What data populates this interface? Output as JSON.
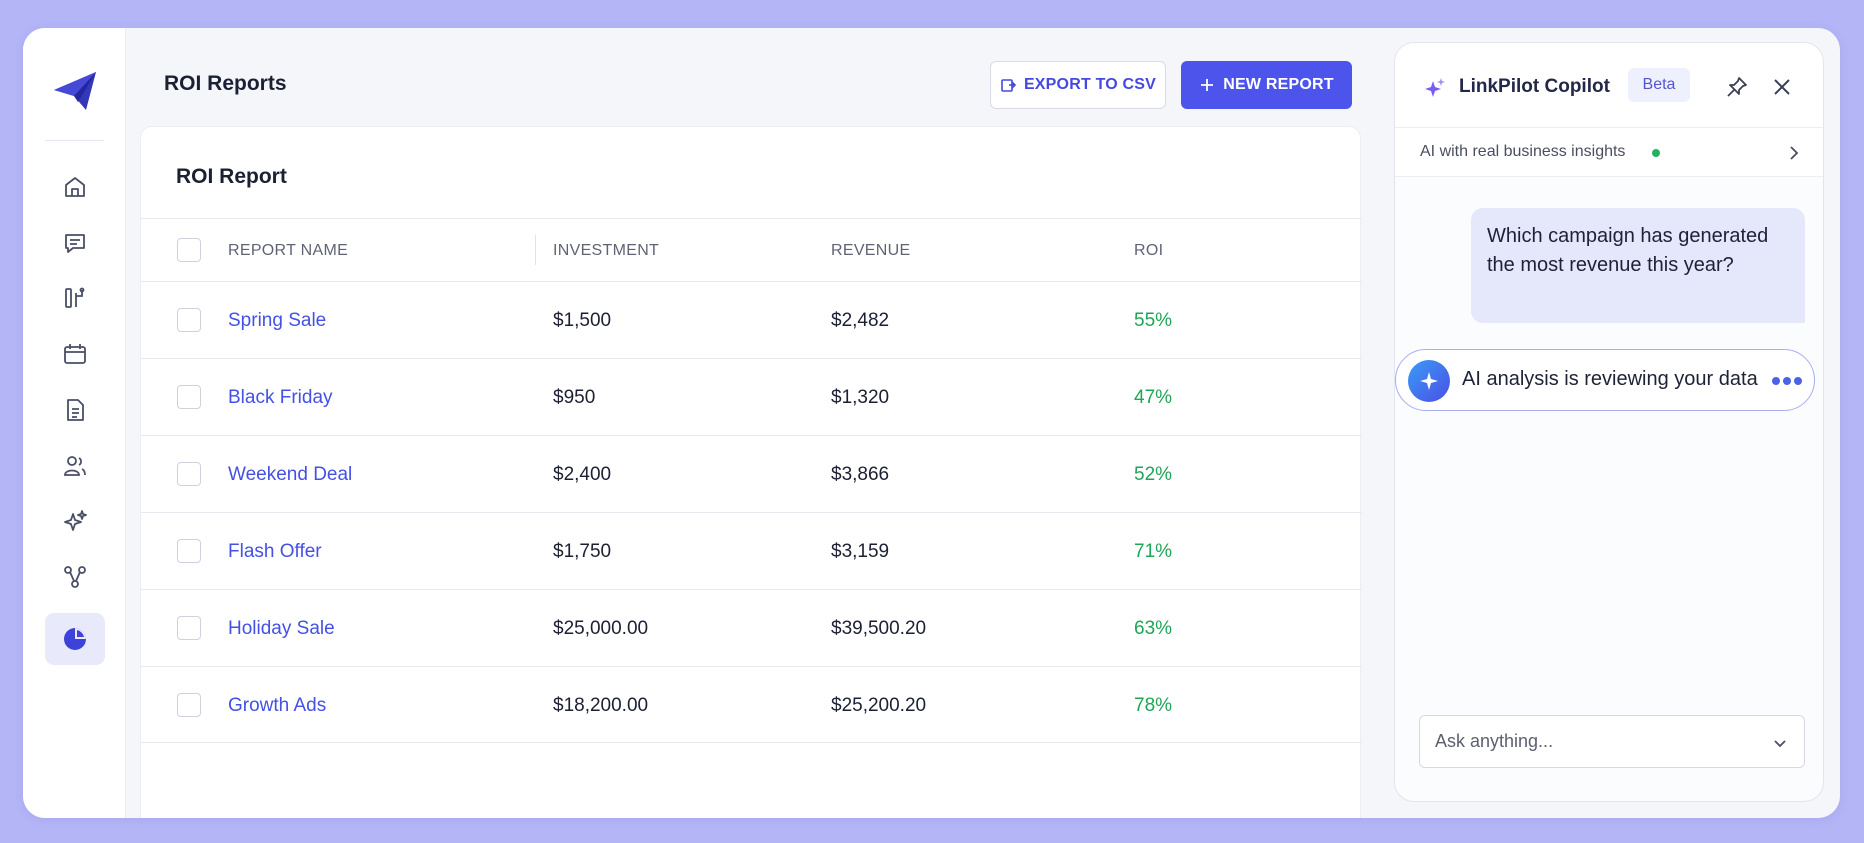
{
  "colors": {
    "accent": "#4d54ec",
    "link": "#4451e4",
    "roi_positive": "#1fa558",
    "active_nav_bg": "#e8eafc",
    "backdrop": "#b4b5f7"
  },
  "sidebar": {
    "logo_icon": "paper-plane-icon",
    "items": [
      {
        "icon": "home-icon",
        "active": false
      },
      {
        "icon": "chat-icon",
        "active": false
      },
      {
        "icon": "branch-icon",
        "active": false
      },
      {
        "icon": "calendar-icon",
        "active": false
      },
      {
        "icon": "document-icon",
        "active": false
      },
      {
        "icon": "users-icon",
        "active": false
      },
      {
        "icon": "sparkles-icon",
        "active": false
      },
      {
        "icon": "nodes-icon",
        "active": false
      },
      {
        "icon": "pie-chart-icon",
        "active": true
      }
    ]
  },
  "header": {
    "title": "ROI Reports",
    "export_label": "EXPORT TO CSV",
    "new_report_label": "NEW REPORT"
  },
  "report": {
    "title": "ROI Report",
    "columns": [
      "REPORT NAME",
      "INVESTMENT",
      "REVENUE",
      "ROI"
    ],
    "rows": [
      {
        "name": "Spring Sale",
        "investment": "$1,500",
        "revenue": "$2,482",
        "roi": "55%"
      },
      {
        "name": "Black Friday",
        "investment": "$950",
        "revenue": "$1,320",
        "roi": "47%"
      },
      {
        "name": "Weekend Deal",
        "investment": "$2,400",
        "revenue": "$3,866",
        "roi": "52%"
      },
      {
        "name": "Flash Offer",
        "investment": "$1,750",
        "revenue": "$3,159",
        "roi": "71%"
      },
      {
        "name": "Holiday Sale",
        "investment": "$25,000.00",
        "revenue": "$39,500.20",
        "roi": "63%"
      },
      {
        "name": "Growth Ads",
        "investment": "$18,200.00",
        "revenue": "$25,200.20",
        "roi": "78%"
      }
    ]
  },
  "copilot": {
    "title": "LinkPilot Copilot",
    "badge": "Beta",
    "subtitle": "AI with real business insights",
    "user_message": "Which campaign has generated the most revenue this year?",
    "status": "AI analysis is reviewing your data",
    "input_placeholder": "Ask anything..."
  }
}
